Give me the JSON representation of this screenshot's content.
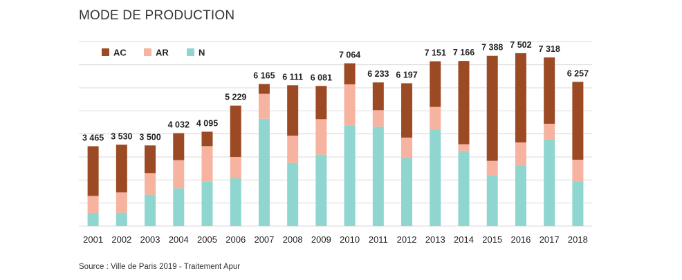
{
  "title": "MODE DE PRODUCTION",
  "source": "Source : Ville de Paris 2019 - Traitement Apur",
  "colors": {
    "AC": "#9b4a24",
    "AR": "#f6b3a0",
    "N": "#8fd5d0",
    "grid": "#d9d9d9"
  },
  "chart_data": {
    "type": "bar",
    "stacked": true,
    "title": "MODE DE PRODUCTION",
    "xlabel": "",
    "ylabel": "",
    "ylim": [
      0,
      7500
    ],
    "grid": true,
    "legend": "top-left",
    "categories": [
      "2001",
      "2002",
      "2003",
      "2004",
      "2005",
      "2006",
      "2007",
      "2008",
      "2009",
      "2010",
      "2011",
      "2012",
      "2013",
      "2014",
      "2015",
      "2016",
      "2017",
      "2018"
    ],
    "totals_labels": [
      "3 465",
      "3 530",
      "3 500",
      "4 032",
      "4 095",
      "5 229",
      "6 165",
      "6 111",
      "6 081",
      "7 064",
      "6 233",
      "6 197",
      "7 151",
      "7 166",
      "7 388",
      "7 502",
      "7 318",
      "6 257"
    ],
    "totals": [
      3465,
      3530,
      3500,
      4032,
      4095,
      5229,
      6165,
      6111,
      6081,
      7064,
      6233,
      6197,
      7151,
      7166,
      7388,
      7502,
      7318,
      6257
    ],
    "series": [
      {
        "name": "N",
        "values": [
          570,
          580,
          1360,
          1640,
          1930,
          2070,
          4660,
          2740,
          3100,
          4370,
          4310,
          2960,
          4170,
          3250,
          2210,
          2610,
          3760,
          1920
        ]
      },
      {
        "name": "AR",
        "values": [
          740,
          880,
          940,
          1220,
          1540,
          930,
          1080,
          1180,
          1540,
          1780,
          720,
          880,
          1000,
          300,
          620,
          1020,
          680,
          960
        ]
      },
      {
        "name": "AC",
        "values": [
          2155,
          2070,
          1200,
          1172,
          625,
          2229,
          425,
          2191,
          1441,
          914,
          1203,
          2357,
          1981,
          3616,
          4558,
          3872,
          2878,
          3377
        ]
      }
    ]
  }
}
